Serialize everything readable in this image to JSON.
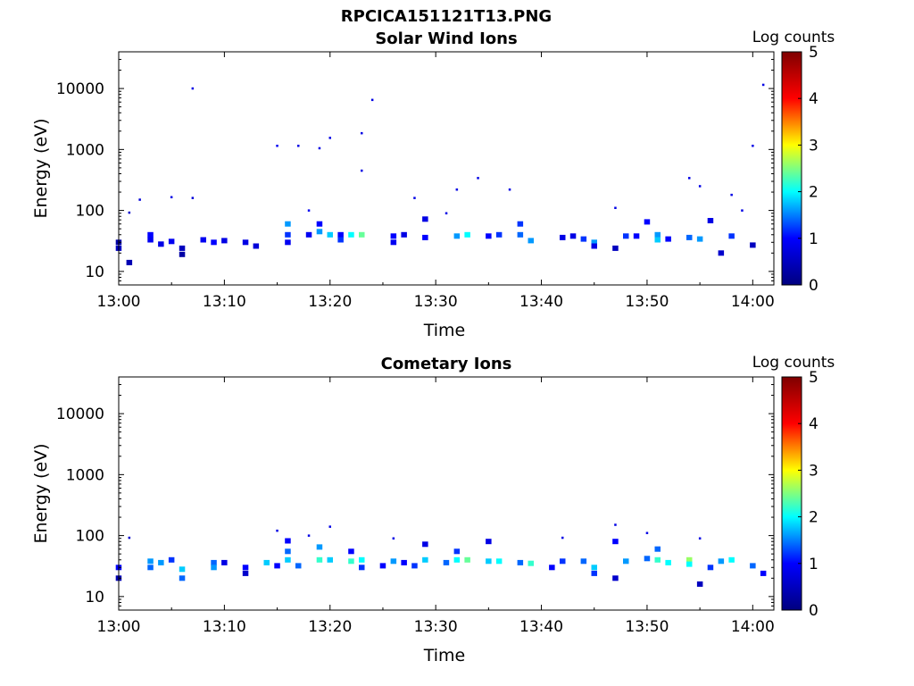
{
  "figure": {
    "title": "RPCICA151121T13.PNG"
  },
  "colormap": {
    "name": "jet",
    "stops": [
      "#00007f",
      "#0000ff",
      "#00ffff",
      "#ffff00",
      "#ff0000",
      "#7f0000"
    ]
  },
  "chart_data": [
    {
      "type": "heatmap",
      "title": "Solar Wind Ions",
      "xlabel": "Time",
      "ylabel": "Energy (eV)",
      "xlim": [
        "13:00",
        "14:02"
      ],
      "ylim": [
        6,
        40000
      ],
      "yscale": "log",
      "xticks": [
        "13:00",
        "13:10",
        "13:20",
        "13:30",
        "13:40",
        "13:50",
        "14:00"
      ],
      "yticks": [
        10,
        100,
        1000,
        10000
      ],
      "ytick_labels": [
        "10",
        "100",
        "1000",
        "10000"
      ],
      "grid": false,
      "colorbar": {
        "label": "Log counts",
        "range": [
          0,
          5
        ],
        "ticks": [
          "0",
          "1",
          "2",
          "3",
          "4",
          "5"
        ]
      },
      "points": [
        {
          "t": "13:00",
          "e": 30,
          "v": 0.3
        },
        {
          "t": "13:00",
          "e": 24,
          "v": 0.5
        },
        {
          "t": "13:01",
          "e": 14,
          "v": 0.4
        },
        {
          "t": "13:01",
          "e": 92,
          "v": 0.6
        },
        {
          "t": "13:02",
          "e": 150,
          "v": 0.7
        },
        {
          "t": "13:03",
          "e": 33,
          "v": 0.9
        },
        {
          "t": "13:03",
          "e": 40,
          "v": 1.0
        },
        {
          "t": "13:04",
          "e": 28,
          "v": 0.8
        },
        {
          "t": "13:05",
          "e": 165,
          "v": 0.8
        },
        {
          "t": "13:05",
          "e": 31,
          "v": 0.9
        },
        {
          "t": "13:06",
          "e": 24,
          "v": 0.5
        },
        {
          "t": "13:06",
          "e": 19,
          "v": 0.3
        },
        {
          "t": "13:07",
          "e": 10000,
          "v": 0.8
        },
        {
          "t": "13:07",
          "e": 160,
          "v": 0.7
        },
        {
          "t": "13:08",
          "e": 33,
          "v": 0.9
        },
        {
          "t": "13:09",
          "e": 30,
          "v": 1.0
        },
        {
          "t": "13:10",
          "e": 32,
          "v": 0.8
        },
        {
          "t": "13:12",
          "e": 30,
          "v": 0.8
        },
        {
          "t": "13:13",
          "e": 26,
          "v": 0.7
        },
        {
          "t": "13:15",
          "e": 1150,
          "v": 0.9
        },
        {
          "t": "13:16",
          "e": 60,
          "v": 1.6
        },
        {
          "t": "13:16",
          "e": 40,
          "v": 1.2
        },
        {
          "t": "13:16",
          "e": 30,
          "v": 0.9
        },
        {
          "t": "13:17",
          "e": 1150,
          "v": 0.8
        },
        {
          "t": "13:18",
          "e": 100,
          "v": 0.9
        },
        {
          "t": "13:18",
          "e": 40,
          "v": 0.9
        },
        {
          "t": "13:19",
          "e": 1050,
          "v": 0.8
        },
        {
          "t": "13:19",
          "e": 60,
          "v": 1.0
        },
        {
          "t": "13:19",
          "e": 45,
          "v": 1.6
        },
        {
          "t": "13:20",
          "e": 40,
          "v": 1.8
        },
        {
          "t": "13:20",
          "e": 1550,
          "v": 0.8
        },
        {
          "t": "13:21",
          "e": 40,
          "v": 1.0
        },
        {
          "t": "13:21",
          "e": 33,
          "v": 1.2
        },
        {
          "t": "13:22",
          "e": 40,
          "v": 2.0
        },
        {
          "t": "13:23",
          "e": 40,
          "v": 2.4
        },
        {
          "t": "13:23",
          "e": 1850,
          "v": 0.8
        },
        {
          "t": "13:23",
          "e": 450,
          "v": 0.8
        },
        {
          "t": "13:24",
          "e": 6500,
          "v": 0.8
        },
        {
          "t": "13:26",
          "e": 38,
          "v": 1.0
        },
        {
          "t": "13:26",
          "e": 30,
          "v": 0.9
        },
        {
          "t": "13:27",
          "e": 40,
          "v": 0.8
        },
        {
          "t": "13:28",
          "e": 160,
          "v": 0.8
        },
        {
          "t": "13:29",
          "e": 72,
          "v": 0.8
        },
        {
          "t": "13:29",
          "e": 36,
          "v": 1.0
        },
        {
          "t": "13:31",
          "e": 90,
          "v": 0.8
        },
        {
          "t": "13:32",
          "e": 220,
          "v": 0.8
        },
        {
          "t": "13:32",
          "e": 38,
          "v": 1.6
        },
        {
          "t": "13:33",
          "e": 40,
          "v": 2.0
        },
        {
          "t": "13:34",
          "e": 340,
          "v": 0.8
        },
        {
          "t": "13:35",
          "e": 38,
          "v": 1.0
        },
        {
          "t": "13:36",
          "e": 40,
          "v": 1.2
        },
        {
          "t": "13:37",
          "e": 220,
          "v": 0.8
        },
        {
          "t": "13:38",
          "e": 60,
          "v": 1.2
        },
        {
          "t": "13:38",
          "e": 40,
          "v": 1.4
        },
        {
          "t": "13:39",
          "e": 32,
          "v": 1.6
        },
        {
          "t": "13:42",
          "e": 36,
          "v": 0.8
        },
        {
          "t": "13:43",
          "e": 38,
          "v": 0.8
        },
        {
          "t": "13:44",
          "e": 34,
          "v": 1.2
        },
        {
          "t": "13:45",
          "e": 30,
          "v": 1.6
        },
        {
          "t": "13:45",
          "e": 26,
          "v": 0.8
        },
        {
          "t": "13:47",
          "e": 110,
          "v": 0.8
        },
        {
          "t": "13:47",
          "e": 24,
          "v": 0.5
        },
        {
          "t": "13:48",
          "e": 38,
          "v": 1.2
        },
        {
          "t": "13:49",
          "e": 38,
          "v": 1.0
        },
        {
          "t": "13:50",
          "e": 65,
          "v": 1.0
        },
        {
          "t": "13:51",
          "e": 40,
          "v": 1.6
        },
        {
          "t": "13:51",
          "e": 33,
          "v": 1.8
        },
        {
          "t": "13:52",
          "e": 34,
          "v": 1.0
        },
        {
          "t": "13:54",
          "e": 340,
          "v": 0.8
        },
        {
          "t": "13:54",
          "e": 36,
          "v": 1.4
        },
        {
          "t": "13:55",
          "e": 250,
          "v": 0.8
        },
        {
          "t": "13:55",
          "e": 34,
          "v": 1.6
        },
        {
          "t": "13:56",
          "e": 68,
          "v": 0.8
        },
        {
          "t": "13:57",
          "e": 20,
          "v": 0.6
        },
        {
          "t": "13:58",
          "e": 180,
          "v": 0.8
        },
        {
          "t": "13:58",
          "e": 38,
          "v": 1.2
        },
        {
          "t": "13:59",
          "e": 100,
          "v": 0.8
        },
        {
          "t": "14:00",
          "e": 1150,
          "v": 0.8
        },
        {
          "t": "14:00",
          "e": 27,
          "v": 0.5
        },
        {
          "t": "14:01",
          "e": 11500,
          "v": 0.8
        }
      ]
    },
    {
      "type": "heatmap",
      "title": "Cometary Ions",
      "xlabel": "Time",
      "ylabel": "Energy (eV)",
      "xlim": [
        "13:00",
        "14:02"
      ],
      "ylim": [
        6,
        40000
      ],
      "yscale": "log",
      "xticks": [
        "13:00",
        "13:10",
        "13:20",
        "13:30",
        "13:40",
        "13:50",
        "14:00"
      ],
      "yticks": [
        10,
        100,
        1000,
        10000
      ],
      "ytick_labels": [
        "10",
        "100",
        "1000",
        "10000"
      ],
      "grid": false,
      "colorbar": {
        "label": "Log counts",
        "range": [
          0,
          5
        ],
        "ticks": [
          "0",
          "1",
          "2",
          "3",
          "4",
          "5"
        ]
      },
      "points": [
        {
          "t": "13:00",
          "e": 30,
          "v": 1.0
        },
        {
          "t": "13:00",
          "e": 20,
          "v": 0.4
        },
        {
          "t": "13:01",
          "e": 92,
          "v": 0.6
        },
        {
          "t": "13:03",
          "e": 38,
          "v": 1.6
        },
        {
          "t": "13:03",
          "e": 30,
          "v": 1.4
        },
        {
          "t": "13:04",
          "e": 36,
          "v": 1.6
        },
        {
          "t": "13:05",
          "e": 40,
          "v": 1.2
        },
        {
          "t": "13:06",
          "e": 28,
          "v": 1.8
        },
        {
          "t": "13:06",
          "e": 20,
          "v": 1.4
        },
        {
          "t": "13:09",
          "e": 36,
          "v": 1.4
        },
        {
          "t": "13:09",
          "e": 30,
          "v": 1.6
        },
        {
          "t": "13:10",
          "e": 36,
          "v": 0.8
        },
        {
          "t": "13:12",
          "e": 30,
          "v": 1.0
        },
        {
          "t": "13:12",
          "e": 24,
          "v": 0.6
        },
        {
          "t": "13:14",
          "e": 36,
          "v": 1.8
        },
        {
          "t": "13:15",
          "e": 120,
          "v": 0.8
        },
        {
          "t": "13:15",
          "e": 32,
          "v": 1.0
        },
        {
          "t": "13:16",
          "e": 82,
          "v": 1.0
        },
        {
          "t": "13:16",
          "e": 55,
          "v": 1.4
        },
        {
          "t": "13:16",
          "e": 40,
          "v": 1.8
        },
        {
          "t": "13:17",
          "e": 32,
          "v": 1.4
        },
        {
          "t": "13:18",
          "e": 100,
          "v": 0.8
        },
        {
          "t": "13:19",
          "e": 65,
          "v": 1.6
        },
        {
          "t": "13:19",
          "e": 40,
          "v": 2.2
        },
        {
          "t": "13:20",
          "e": 40,
          "v": 1.8
        },
        {
          "t": "13:20",
          "e": 140,
          "v": 0.8
        },
        {
          "t": "13:22",
          "e": 55,
          "v": 1.0
        },
        {
          "t": "13:22",
          "e": 38,
          "v": 2.2
        },
        {
          "t": "13:23",
          "e": 40,
          "v": 2.0
        },
        {
          "t": "13:23",
          "e": 30,
          "v": 1.2
        },
        {
          "t": "13:25",
          "e": 32,
          "v": 1.0
        },
        {
          "t": "13:26",
          "e": 90,
          "v": 0.8
        },
        {
          "t": "13:26",
          "e": 38,
          "v": 1.6
        },
        {
          "t": "13:27",
          "e": 36,
          "v": 1.0
        },
        {
          "t": "13:28",
          "e": 32,
          "v": 1.2
        },
        {
          "t": "13:29",
          "e": 72,
          "v": 0.8
        },
        {
          "t": "13:29",
          "e": 40,
          "v": 1.8
        },
        {
          "t": "13:31",
          "e": 36,
          "v": 1.4
        },
        {
          "t": "13:32",
          "e": 55,
          "v": 1.2
        },
        {
          "t": "13:32",
          "e": 40,
          "v": 2.0
        },
        {
          "t": "13:33",
          "e": 40,
          "v": 2.4
        },
        {
          "t": "13:35",
          "e": 38,
          "v": 1.8
        },
        {
          "t": "13:35",
          "e": 80,
          "v": 0.8
        },
        {
          "t": "13:36",
          "e": 38,
          "v": 2.0
        },
        {
          "t": "13:38",
          "e": 36,
          "v": 1.4
        },
        {
          "t": "13:39",
          "e": 35,
          "v": 2.2
        },
        {
          "t": "13:41",
          "e": 30,
          "v": 1.0
        },
        {
          "t": "13:42",
          "e": 92,
          "v": 0.8
        },
        {
          "t": "13:42",
          "e": 38,
          "v": 1.2
        },
        {
          "t": "13:44",
          "e": 38,
          "v": 1.4
        },
        {
          "t": "13:45",
          "e": 30,
          "v": 1.8
        },
        {
          "t": "13:45",
          "e": 24,
          "v": 1.2
        },
        {
          "t": "13:47",
          "e": 150,
          "v": 0.8
        },
        {
          "t": "13:47",
          "e": 80,
          "v": 1.0
        },
        {
          "t": "13:47",
          "e": 20,
          "v": 0.6
        },
        {
          "t": "13:48",
          "e": 38,
          "v": 1.6
        },
        {
          "t": "13:50",
          "e": 110,
          "v": 0.8
        },
        {
          "t": "13:50",
          "e": 42,
          "v": 1.4
        },
        {
          "t": "13:51",
          "e": 60,
          "v": 1.4
        },
        {
          "t": "13:51",
          "e": 40,
          "v": 2.2
        },
        {
          "t": "13:52",
          "e": 36,
          "v": 2.0
        },
        {
          "t": "13:54",
          "e": 40,
          "v": 2.6
        },
        {
          "t": "13:54",
          "e": 34,
          "v": 2.0
        },
        {
          "t": "13:55",
          "e": 16,
          "v": 0.5
        },
        {
          "t": "13:55",
          "e": 90,
          "v": 0.8
        },
        {
          "t": "13:56",
          "e": 30,
          "v": 1.2
        },
        {
          "t": "13:57",
          "e": 38,
          "v": 1.6
        },
        {
          "t": "13:58",
          "e": 40,
          "v": 2.0
        },
        {
          "t": "14:00",
          "e": 32,
          "v": 1.4
        },
        {
          "t": "14:01",
          "e": 24,
          "v": 1.0
        }
      ]
    }
  ]
}
